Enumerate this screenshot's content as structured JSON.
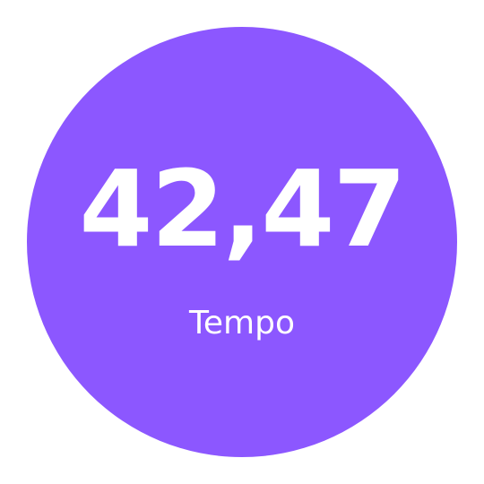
{
  "metric": {
    "value": "42,47",
    "label": "Tempo"
  },
  "colors": {
    "circle": "#8c57ff",
    "text": "#ffffff",
    "background": "#ffffff"
  }
}
